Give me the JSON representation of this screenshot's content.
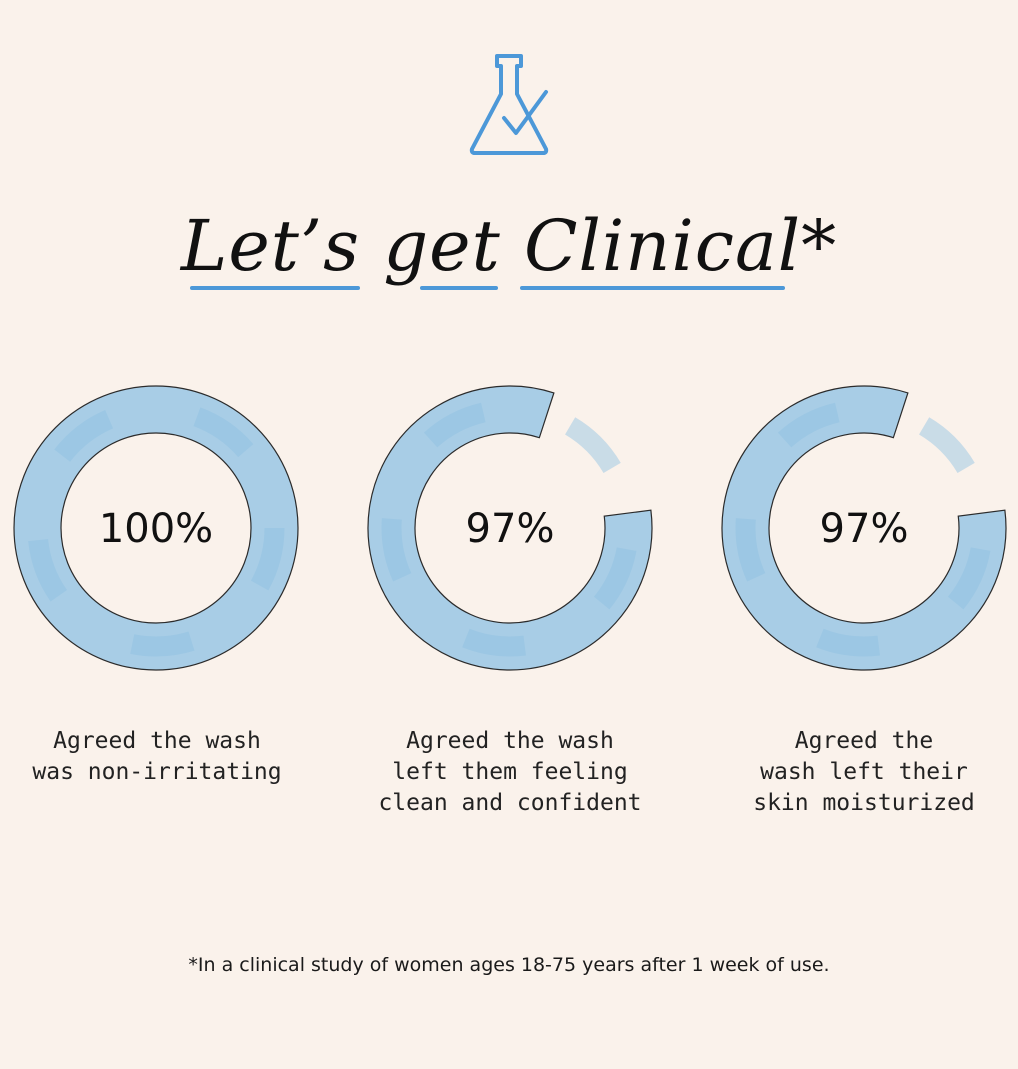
{
  "icon": "flask-check-icon",
  "colors": {
    "background": "#faf2eb",
    "ring_fill": "#a8cde6",
    "ring_shade": "#8fc0e2",
    "ring_outline": "#2b2b2b",
    "accent": "#4c98d8"
  },
  "title": "Let’s get Clinical*",
  "chart_data": {
    "type": "pie",
    "charts": [
      {
        "value": 100,
        "label": "100%",
        "description": "Agreed the wash\nwas non-irritating"
      },
      {
        "value": 97,
        "label": "97%",
        "description": "Agreed the wash\nleft them feeling\nclean and confident"
      },
      {
        "value": 97,
        "label": "97%",
        "description": "Agreed the\nwash left their\nskin moisturized"
      }
    ]
  },
  "footnote": "*In a clinical study of women ages 18-75 years after 1 week of use."
}
